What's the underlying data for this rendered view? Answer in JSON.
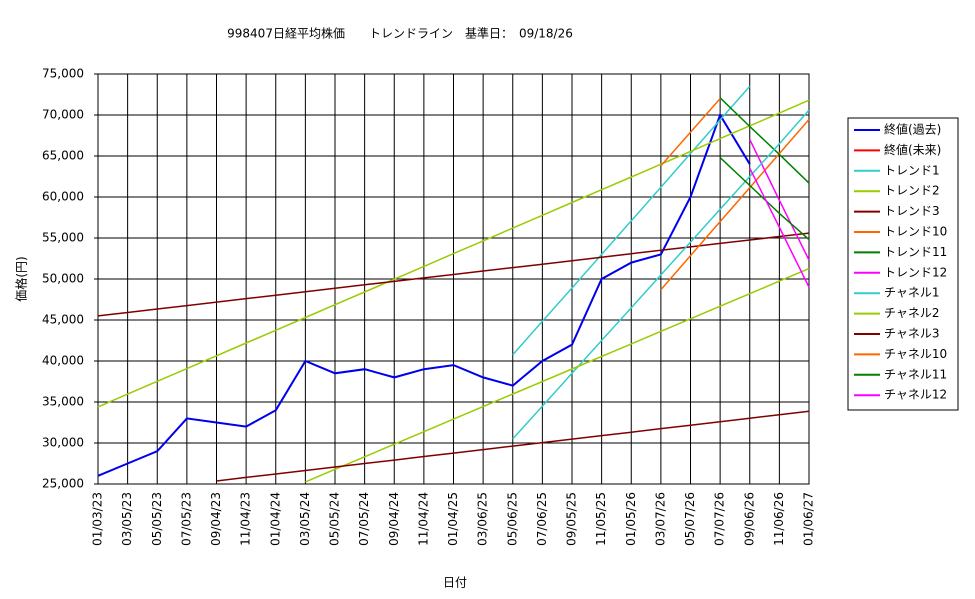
{
  "chart_data": {
    "type": "line",
    "title": "998407日経平均株価　　トレンドライン　基準日：　09/18/26",
    "xlabel": "日付",
    "ylabel": "価格(円)",
    "categories": [
      "01/03/23",
      "03/05/23",
      "05/05/23",
      "07/05/23",
      "09/04/23",
      "11/04/23",
      "01/04/24",
      "03/05/24",
      "05/05/24",
      "07/05/24",
      "09/04/24",
      "11/04/24",
      "01/04/25",
      "03/06/25",
      "05/06/25",
      "07/06/25",
      "09/05/25",
      "11/05/25",
      "01/05/26",
      "03/07/26",
      "05/07/26",
      "07/07/26",
      "09/06/26",
      "11/06/26",
      "01/06/27"
    ],
    "ylim": [
      25000,
      75000
    ],
    "yticks": [
      {
        "value": 25000,
        "label": "25,000"
      },
      {
        "value": 30000,
        "label": "30,000"
      },
      {
        "value": 35000,
        "label": "35,000"
      },
      {
        "value": 40000,
        "label": "40,000"
      },
      {
        "value": 45000,
        "label": "45,000"
      },
      {
        "value": 50000,
        "label": "50,000"
      },
      {
        "value": 55000,
        "label": "55,000"
      },
      {
        "value": 60000,
        "label": "60,000"
      },
      {
        "value": 65000,
        "label": "65,000"
      },
      {
        "value": 70000,
        "label": "70,000"
      },
      {
        "value": 75000,
        "label": "75,000"
      }
    ],
    "grid": true,
    "legend": "right",
    "series": [
      {
        "name": "終値(過去)",
        "color": "#0000ee",
        "values": [
          26000,
          27500,
          29000,
          33000,
          32500,
          32000,
          34000,
          40000,
          38500,
          39000,
          38000,
          39000,
          39500,
          38000,
          37000,
          40000,
          42000,
          50000,
          52000,
          53000,
          60000,
          70000,
          64000,
          null,
          null
        ]
      },
      {
        "name": "終値(未来)",
        "color": "#ff0000",
        "values": [
          null,
          null,
          null,
          null,
          null,
          null,
          null,
          null,
          null,
          null,
          null,
          null,
          null,
          null,
          null,
          null,
          null,
          null,
          null,
          null,
          null,
          null,
          null,
          null,
          null
        ]
      },
      {
        "name": "トレンド1",
        "color": "#33cccc",
        "values": [
          null,
          null,
          null,
          null,
          null,
          null,
          null,
          null,
          null,
          null,
          null,
          null,
          null,
          null,
          40770,
          44850,
          48900,
          53000,
          57100,
          61200,
          65300,
          69400,
          73500,
          null,
          null
        ]
      },
      {
        "name": "トレンド2",
        "color": "#99cc00",
        "values": [
          34400,
          35960,
          37520,
          39070,
          40630,
          42190,
          43750,
          45310,
          46860,
          48420,
          49980,
          51540,
          53100,
          54650,
          56210,
          57770,
          59330,
          60890,
          62440,
          64000,
          65560,
          67120,
          68680,
          70230,
          71800
        ]
      },
      {
        "name": "トレンド3",
        "color": "#800000",
        "values": [
          45500,
          45920,
          46340,
          46760,
          47180,
          47610,
          48030,
          48450,
          48870,
          49290,
          49710,
          50130,
          50550,
          50970,
          51390,
          51810,
          52230,
          52660,
          53080,
          53500,
          53920,
          54340,
          54760,
          55180,
          55600
        ]
      },
      {
        "name": "トレンド10",
        "color": "#ff6600",
        "values": [
          null,
          null,
          null,
          null,
          null,
          null,
          null,
          null,
          null,
          null,
          null,
          null,
          null,
          null,
          null,
          null,
          null,
          null,
          null,
          48700,
          52850,
          57000,
          61150,
          65300,
          69450
        ]
      },
      {
        "name": "トレンド11",
        "color": "#008000",
        "values": [
          null,
          null,
          null,
          null,
          null,
          null,
          null,
          null,
          null,
          null,
          null,
          null,
          null,
          null,
          null,
          null,
          null,
          null,
          null,
          null,
          null,
          72100,
          68600,
          65200,
          61700
        ]
      },
      {
        "name": "トレンド12",
        "color": "#ff00ff",
        "values": [
          null,
          null,
          null,
          null,
          null,
          null,
          null,
          null,
          null,
          null,
          null,
          null,
          null,
          null,
          null,
          null,
          null,
          null,
          null,
          null,
          null,
          null,
          67000,
          59600,
          52300
        ]
      },
      {
        "name": "チャネル1",
        "color": "#33cccc",
        "values": [
          null,
          null,
          null,
          null,
          null,
          null,
          null,
          null,
          null,
          null,
          null,
          null,
          null,
          null,
          30500,
          34500,
          38500,
          42500,
          46500,
          50500,
          54500,
          58500,
          62500,
          66500,
          70600
        ]
      },
      {
        "name": "チャネル2",
        "color": "#99cc00",
        "values": [
          null,
          null,
          null,
          null,
          null,
          null,
          null,
          25260,
          26790,
          28320,
          29850,
          31380,
          32910,
          34440,
          35970,
          37500,
          39030,
          40560,
          42090,
          43620,
          45150,
          46680,
          48210,
          49740,
          51270
        ]
      },
      {
        "name": "チャネル3",
        "color": "#800000",
        "values": [
          null,
          null,
          null,
          null,
          25370,
          25800,
          26220,
          26650,
          27070,
          27500,
          27920,
          28350,
          28770,
          29200,
          29620,
          30050,
          30470,
          30900,
          31320,
          31750,
          32170,
          32600,
          33020,
          33450,
          33870
        ]
      },
      {
        "name": "チャネル10",
        "color": "#ff6600",
        "values": [
          null,
          null,
          null,
          null,
          null,
          null,
          null,
          null,
          null,
          null,
          null,
          null,
          null,
          null,
          null,
          null,
          null,
          null,
          null,
          63800,
          67900,
          72000,
          null,
          null,
          null
        ]
      },
      {
        "name": "チャネル11",
        "color": "#008000",
        "values": [
          null,
          null,
          null,
          null,
          null,
          null,
          null,
          null,
          null,
          null,
          null,
          null,
          null,
          null,
          null,
          null,
          null,
          null,
          null,
          null,
          null,
          64800,
          61400,
          58000,
          54800
        ]
      },
      {
        "name": "チャネル12",
        "color": "#ff00ff",
        "values": [
          null,
          null,
          null,
          null,
          null,
          null,
          null,
          null,
          null,
          null,
          null,
          null,
          null,
          null,
          null,
          null,
          null,
          null,
          null,
          null,
          null,
          null,
          63500,
          56300,
          49000
        ]
      }
    ]
  }
}
